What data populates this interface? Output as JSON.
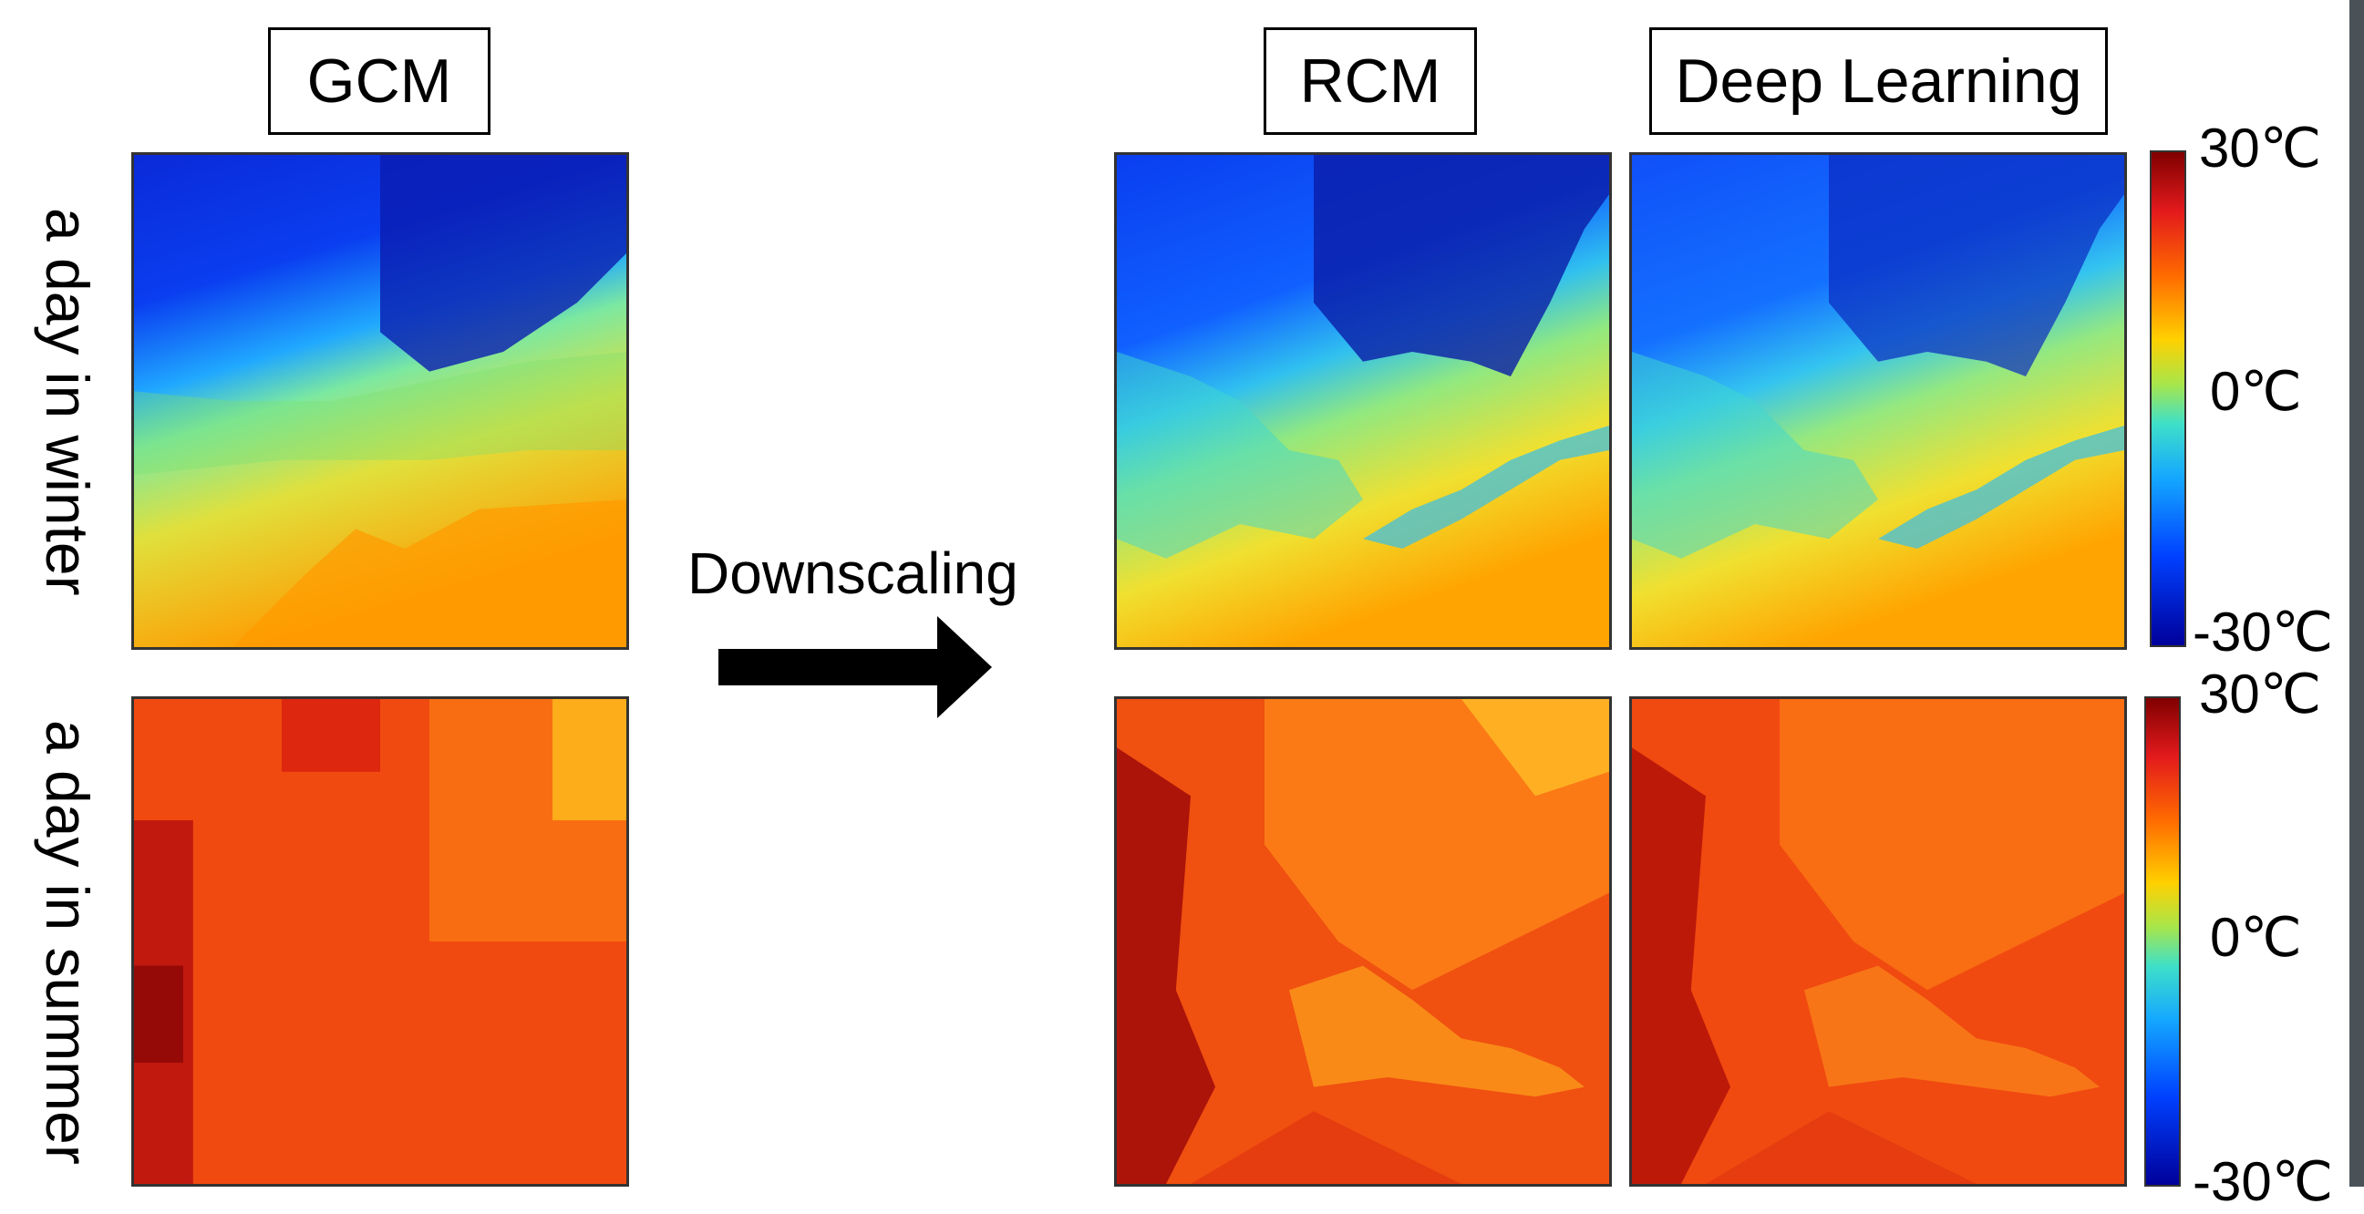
{
  "headers": {
    "gcm": "GCM",
    "rcm": "RCM",
    "deep_learning": "Deep Learning"
  },
  "row_labels": {
    "winter": "a day in winter",
    "summer": "a day in summer"
  },
  "arrow_label": "Downscaling",
  "colorbar": {
    "max_label": "30℃",
    "mid_label": "0℃",
    "min_label": "-30℃",
    "colors": [
      "#800000",
      "#e31a1c",
      "#ff6a00",
      "#ffd000",
      "#a8e64a",
      "#3fe0c8",
      "#14a8ff",
      "#0040ff",
      "#00009a"
    ]
  },
  "colors": {
    "winter_cold": "#0a2ad8",
    "winter_mid": "#3fe0c8",
    "winter_warm": "#ffb000",
    "summer_base": "#f04a10",
    "summer_hot": "#9a0a0a"
  }
}
